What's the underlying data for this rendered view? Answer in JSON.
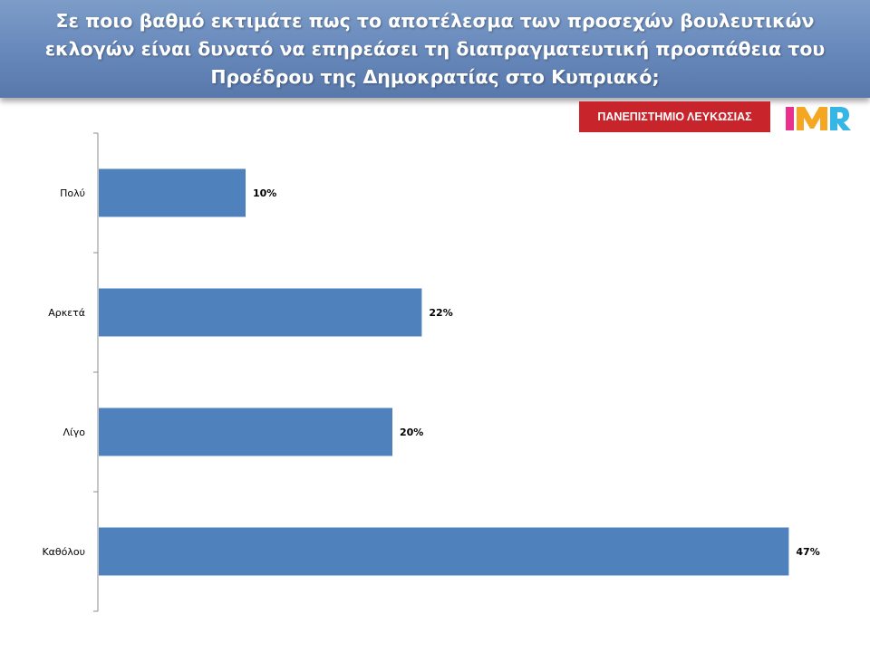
{
  "header": {
    "title_line1": "Σε ποιο βαθμό εκτιμάτε πως το αποτέλεσμα των προσεχών βουλευτικών",
    "title_line2": "εκλογών είναι δυνατό να επηρεάσει τη διαπραγματευτική προσπάθεια του",
    "title_line3": "Προέδρου της Δημοκρατίας στο Κυπριακό;"
  },
  "logos": {
    "university": "ΠΑΝΕΠΙΣΤΗΜΙΟ ΛΕΥΚΩΣΙΑΣ",
    "imr": "IMR"
  },
  "colors": {
    "header_bg": "#6a8bbd",
    "bar": "#4f81bd",
    "university_red": "#c8242b"
  },
  "chart_data": {
    "type": "bar",
    "orientation": "horizontal",
    "categories": [
      "Πολύ",
      "Αρκετά",
      "Λίγο",
      "Καθόλου"
    ],
    "values": [
      10,
      22,
      20,
      47
    ],
    "value_labels": [
      "10%",
      "22%",
      "20%",
      "47%"
    ],
    "xlim": [
      0,
      50
    ],
    "grid": false,
    "legend": "none"
  }
}
